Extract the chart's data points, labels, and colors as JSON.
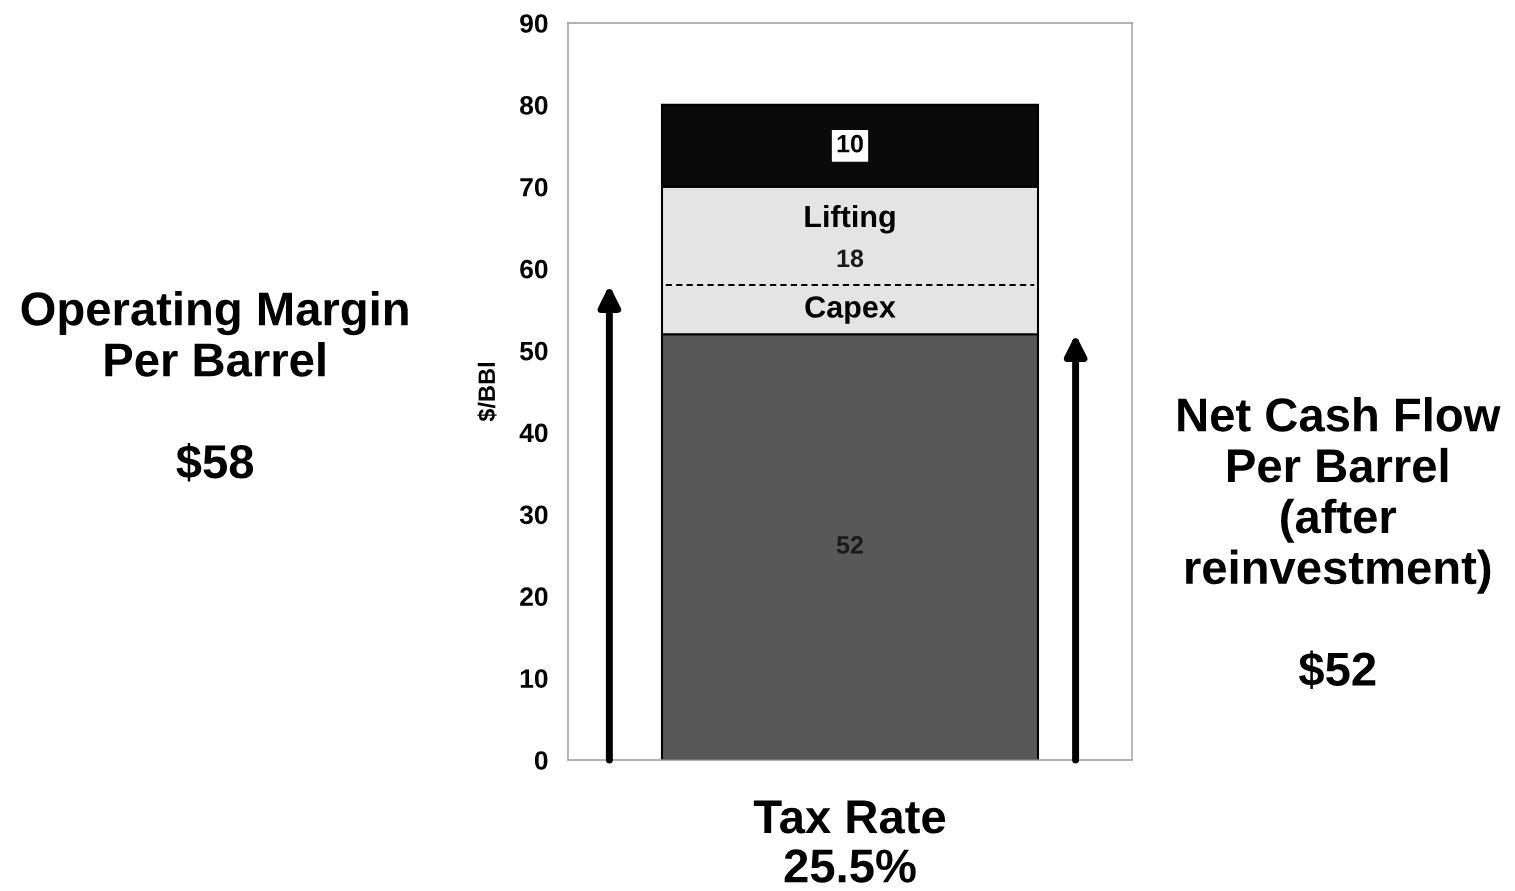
{
  "chart_data": {
    "type": "bar",
    "stacked": true,
    "categories": [
      null
    ],
    "xlabel": "Tax Rate\n25.5%",
    "ylabel": "$/BBl",
    "ylim": [
      0,
      90
    ],
    "yticks": [
      0,
      10,
      20,
      30,
      40,
      50,
      60,
      70,
      80,
      90
    ],
    "data_labels": true,
    "series": [
      {
        "values": [
          52
        ],
        "color": "#585858"
      },
      {
        "values": [
          18
        ],
        "color": "#e4e4e4"
      },
      {
        "values": [
          10
        ],
        "color": "#0a0a0a"
      }
    ],
    "ref_lines": [
      {
        "axis": "y",
        "value": 58,
        "color": "#000000",
        "line_style": "dashed"
      }
    ],
    "annotations": [
      "Operating Margin\nPer Barrel\n\n$58",
      "Net Cash Flow\nPer Barrel\n(after\nreinvestment)\n\n$52",
      "Lifting",
      "Capex"
    ]
  }
}
